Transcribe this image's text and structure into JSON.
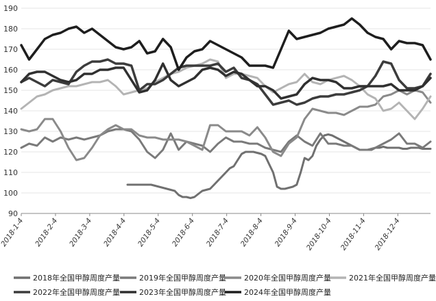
{
  "chart_data": {
    "type": "line",
    "ylim": [
      90,
      190
    ],
    "yticks": [
      90,
      100,
      110,
      120,
      130,
      140,
      150,
      160,
      170,
      180,
      190
    ],
    "x_categories": [
      "2018-1-4",
      "2018-2-4",
      "2018-3-4",
      "2018-4-4",
      "2018-5-4",
      "2018-6-4",
      "2018-7-4",
      "2018-8-4",
      "2018-9-4",
      "2018-10-4",
      "2018-11-4",
      "2018-12-4"
    ],
    "grid": true,
    "legend_position": "bottom",
    "series": [
      {
        "name": "2018年全国甲醇周度产量",
        "color": "#707070",
        "width": 3,
        "x": [
          13.5,
          14,
          14.5,
          15,
          15.5,
          16,
          16.5,
          17,
          17.5,
          18,
          18.5,
          19,
          19.5,
          20,
          20.5,
          21,
          21.5,
          22,
          22.5,
          23,
          23.5,
          24,
          24.5,
          25,
          25.5,
          26,
          26.5,
          27,
          27.5,
          28,
          28.5,
          29,
          29.5,
          30,
          30.5,
          31,
          31.5,
          32,
          32.5,
          33,
          33.5,
          34,
          34.5,
          35,
          35.5,
          36,
          36.5,
          37,
          37.5,
          38,
          38.5,
          39,
          39.5,
          40,
          40.5,
          41,
          41.5,
          42,
          42.5,
          43,
          43.5,
          44,
          44.5,
          45,
          45.5,
          46,
          46.5,
          47,
          47.5,
          48,
          48.5,
          49,
          49.5,
          50,
          50.5,
          51,
          51.5,
          52
        ],
        "values": [
          104,
          104,
          104,
          104,
          104,
          104,
          104,
          103.5,
          103,
          102.5,
          102,
          101.5,
          101,
          99,
          98,
          98,
          97.5,
          98,
          99.5,
          101,
          101.5,
          102,
          104,
          106,
          108,
          110,
          112,
          113,
          116,
          119,
          120,
          120,
          120,
          119.5,
          119,
          118,
          114,
          110,
          103,
          102,
          102,
          102.5,
          103,
          104,
          110,
          117,
          116,
          118,
          123,
          126,
          128,
          128.5,
          128,
          127,
          126,
          125,
          124,
          123,
          122,
          121,
          121,
          121,
          121,
          122,
          122,
          122.5,
          122,
          122,
          122,
          122,
          121.5,
          121.5,
          122,
          122,
          122,
          121.5,
          121.5,
          121.5
        ]
      },
      {
        "name": "2019年全国甲醇周度产量",
        "color": "#7a7a7a",
        "width": 3,
        "x": [
          0,
          1,
          2,
          3,
          4,
          5,
          6,
          7,
          8,
          9,
          10,
          11,
          12,
          13,
          14,
          15,
          16,
          17,
          18,
          19,
          20,
          21,
          22,
          23,
          24,
          25,
          26,
          27,
          28,
          29,
          30,
          31,
          32,
          33,
          34,
          35,
          36,
          37,
          38,
          39,
          40,
          41,
          42,
          43,
          44,
          45,
          46,
          47,
          48,
          49,
          50,
          51,
          52
        ],
        "values": [
          122,
          124,
          123,
          127,
          125,
          127,
          126,
          127,
          126,
          127,
          128,
          130,
          131,
          131,
          130,
          126,
          120,
          117,
          121,
          129,
          121,
          125,
          124,
          123,
          120,
          124,
          127,
          125,
          125,
          124,
          124,
          122,
          121,
          120,
          125,
          128,
          125,
          123,
          129,
          124,
          124,
          123,
          123,
          121,
          121,
          122,
          124,
          126,
          129,
          124,
          124,
          122,
          125
        ]
      },
      {
        "name": "2020年全国甲醇周度产量",
        "color": "#8a8a8a",
        "width": 3,
        "x": [
          0,
          1,
          2,
          3,
          4,
          5,
          6,
          7,
          8,
          9,
          10,
          11,
          12,
          13,
          14,
          15,
          16,
          17,
          18,
          19,
          20,
          21,
          22,
          23,
          24,
          25,
          26,
          27,
          28,
          29,
          30,
          31,
          32,
          33,
          34,
          35,
          36,
          37,
          38,
          39,
          40,
          41,
          42,
          43,
          44,
          45,
          46,
          47,
          48,
          49,
          50,
          51,
          52
        ],
        "values": [
          131,
          130,
          131,
          136,
          136,
          130,
          122,
          116,
          117,
          122,
          128,
          131,
          133,
          131,
          131,
          128,
          127,
          127,
          126,
          126,
          126,
          125,
          123,
          121,
          133,
          133,
          130,
          130,
          130,
          128,
          132,
          127,
          120,
          118,
          124,
          127,
          136,
          141,
          140,
          139,
          139,
          138,
          140,
          142,
          142,
          143,
          147,
          148,
          150,
          148,
          150,
          149,
          144
        ]
      },
      {
        "name": "2021年全国甲醇周度产量",
        "color": "#b4b4b4",
        "width": 3,
        "x": [
          0,
          1,
          2,
          3,
          4,
          5,
          6,
          7,
          8,
          9,
          10,
          11,
          12,
          13,
          14,
          15,
          16,
          17,
          18,
          19,
          20,
          21,
          22,
          23,
          24,
          25,
          26,
          27,
          28,
          29,
          30,
          31,
          32,
          33,
          34,
          35,
          36,
          37,
          38,
          39,
          40,
          41,
          42,
          43,
          44,
          45,
          46,
          47,
          48,
          49,
          50,
          51,
          52
        ],
        "values": [
          141,
          144,
          147,
          148,
          150,
          151,
          152,
          152,
          153,
          154,
          154,
          155,
          152,
          148,
          149,
          150,
          151,
          154,
          156,
          158,
          159,
          161,
          162,
          163,
          165,
          164,
          156,
          158,
          158,
          157,
          156,
          152,
          149,
          151,
          153,
          154,
          158,
          154,
          153,
          155,
          156,
          157,
          155,
          152,
          148,
          146,
          140,
          141,
          144,
          140,
          136,
          141,
          147
        ]
      },
      {
        "name": "2022年全国甲醇周度产量",
        "color": "#3c3c3c",
        "width": 3.5,
        "x": [
          0,
          1,
          2,
          3,
          4,
          5,
          6,
          7,
          8,
          9,
          10,
          11,
          12,
          13,
          14,
          15,
          16,
          17,
          18,
          19,
          20,
          21,
          22,
          23,
          24,
          25,
          26,
          27,
          28,
          29,
          30,
          31,
          32,
          33,
          34,
          35,
          36,
          37,
          38,
          39,
          40,
          41,
          42,
          43,
          44,
          45,
          46,
          47,
          48,
          49,
          50,
          51,
          52
        ],
        "values": [
          154,
          156,
          154,
          152,
          155,
          154,
          153,
          159,
          162,
          164,
          164,
          165,
          163,
          163,
          162,
          150,
          153,
          153,
          155,
          158,
          161,
          162,
          162,
          162,
          162,
          163,
          159,
          161,
          156,
          155,
          153,
          148,
          143,
          144,
          145,
          143,
          144,
          146,
          147,
          147,
          148,
          148,
          149,
          150,
          152,
          157,
          164,
          163,
          155,
          151,
          151,
          152,
          158
        ]
      },
      {
        "name": "2023年全国甲醇周度产量",
        "color": "#303030",
        "width": 3.5,
        "x": [
          0,
          1,
          2,
          3,
          4,
          5,
          6,
          7,
          8,
          9,
          10,
          11,
          12,
          13,
          14,
          15,
          16,
          17,
          18,
          19,
          20,
          21,
          22,
          23,
          24,
          25,
          26,
          27,
          28,
          29,
          30,
          31,
          32,
          33,
          34,
          35,
          36,
          37,
          38,
          39,
          40,
          41,
          42,
          43,
          44,
          45,
          46,
          47,
          48,
          49,
          50,
          51,
          52
        ],
        "values": [
          154,
          158,
          159,
          159,
          157,
          155,
          154,
          155,
          158,
          158,
          160,
          160,
          161,
          161,
          155,
          149,
          150,
          155,
          163,
          155,
          152,
          154,
          156,
          160,
          161,
          160,
          157,
          159,
          158,
          155,
          152,
          152,
          150,
          146,
          147,
          148,
          153,
          156,
          155,
          155,
          154,
          151,
          151,
          152,
          152,
          152,
          152,
          153,
          150,
          150,
          150,
          152,
          156
        ]
      },
      {
        "name": "2024年全国甲醇周度产量",
        "color": "#1e1e1e",
        "width": 3.5,
        "x": [
          0,
          1,
          2,
          3,
          4,
          5,
          6,
          7,
          8,
          9,
          10,
          11,
          12,
          13,
          14,
          15,
          16,
          17,
          18,
          19,
          20,
          21,
          22,
          23,
          24,
          25,
          26,
          27,
          28,
          29,
          30,
          31,
          32,
          33,
          34,
          35,
          36,
          37,
          38,
          39,
          40,
          41,
          42,
          43,
          44,
          45,
          46,
          47,
          48,
          49,
          50,
          51,
          52
        ],
        "values": [
          172,
          165,
          170,
          175,
          177,
          178,
          180,
          181,
          178,
          180,
          177,
          174,
          171,
          170,
          171,
          174,
          168,
          169,
          175,
          171,
          160,
          166,
          169,
          170,
          174,
          172,
          170,
          168,
          166,
          162,
          162,
          162,
          161,
          170,
          179,
          175,
          176,
          177,
          178,
          180,
          181,
          182,
          185,
          182,
          178,
          176,
          175,
          170,
          174,
          173,
          173,
          172,
          165
        ]
      }
    ]
  }
}
